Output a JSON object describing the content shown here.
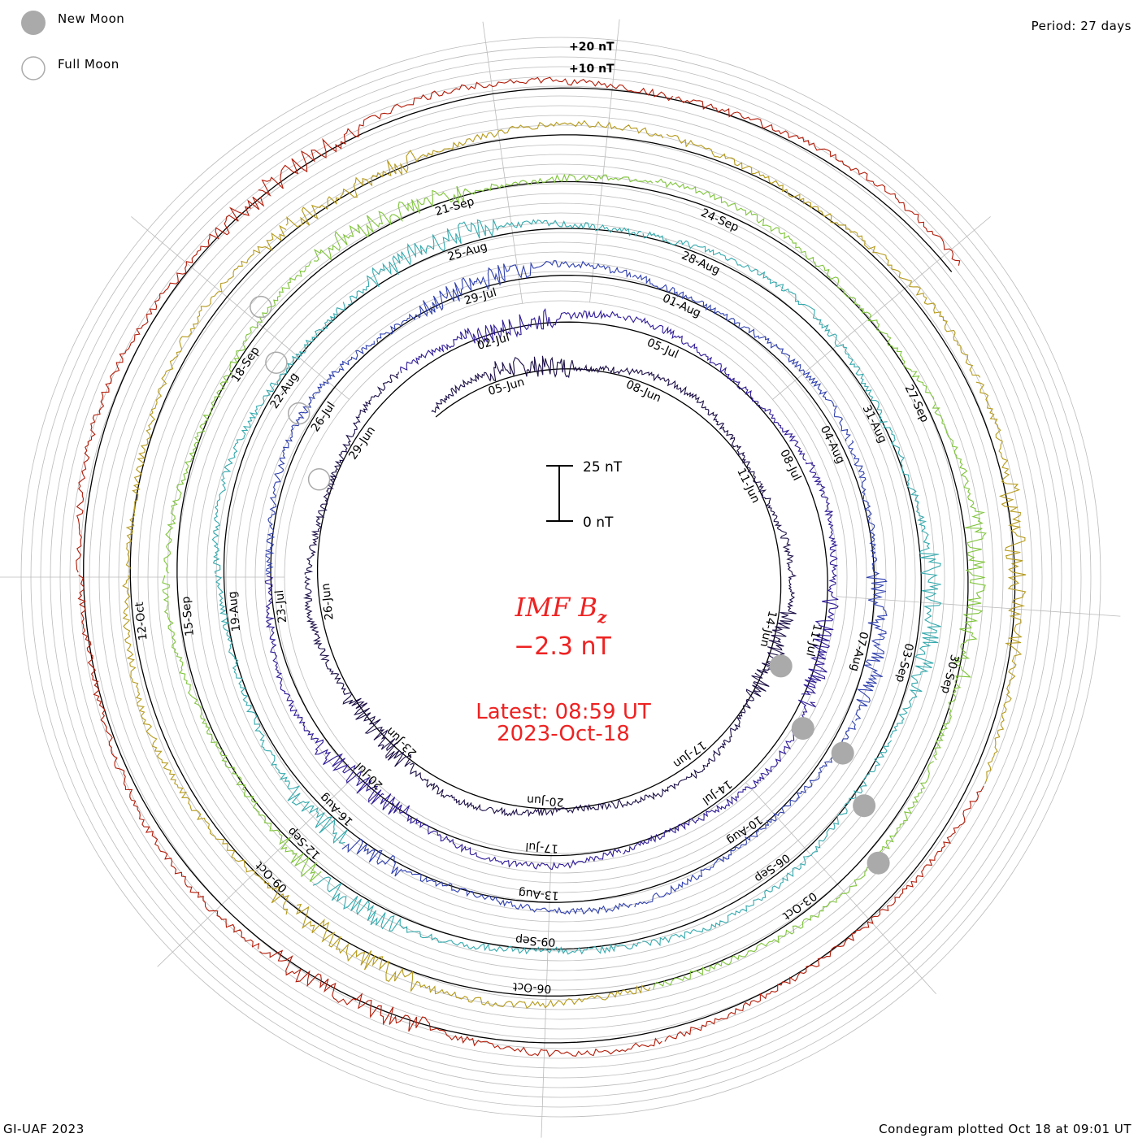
{
  "legend": {
    "new_moon_label": "New Moon",
    "full_moon_label": "Full Moon"
  },
  "header": {
    "period": "Period: 27 days"
  },
  "footer": {
    "credit": "GI-UAF 2023",
    "plotted": "Condegram plotted Oct 18 at 09:01 UT"
  },
  "center": {
    "quantity": "IMF B",
    "subscript": "z",
    "value": "−2.3 nT",
    "latest": "Latest: 08:59 UT",
    "date": "2023-Oct-18"
  },
  "scale_bar": {
    "top_label": "25 nT",
    "bottom_label": "0 nT"
  },
  "colors": {
    "accent": "#ee2222",
    "grid": "#bbbbbb",
    "moon": "#aaaaaa",
    "cycles": [
      "#1b0e45",
      "#2f1a96",
      "#2e3fae",
      "#35a9ad",
      "#7fc43b",
      "#b59a1c",
      "#b21b08"
    ]
  },
  "chart_data": {
    "type": "condegram (spiral time series)",
    "title": "IMF Bz",
    "period_days": 27,
    "latest_value_nT": -2.3,
    "latest_time": "08:59 UT",
    "latest_date": "2023-Oct-18",
    "ring_scale_labels": [
      "+20 nT",
      "+10 nT"
    ],
    "scale_bar_nT": [
      0,
      25
    ],
    "cycles": [
      {
        "index": 1,
        "dates": [
          "05-Jun",
          "08-Jun",
          "11-Jun",
          "14-Jun",
          "17-Jun",
          "20-Jun",
          "23-Jun",
          "26-Jun",
          "29-Jun",
          "02-Jul"
        ]
      },
      {
        "index": 2,
        "dates": [
          "02-Jul",
          "05-Jul",
          "08-Jul",
          "11-Jul",
          "14-Jul",
          "17-Jul",
          "20-Jul",
          "23-Jul",
          "26-Jul",
          "29-Jul"
        ]
      },
      {
        "index": 3,
        "dates": [
          "29-Jul",
          "01-Aug",
          "04-Aug",
          "07-Aug",
          "10-Aug",
          "13-Aug",
          "16-Aug",
          "19-Aug",
          "22-Aug",
          "25-Aug"
        ]
      },
      {
        "index": 4,
        "dates": [
          "25-Aug",
          "28-Aug",
          "31-Aug",
          "03-Sep",
          "06-Sep",
          "09-Sep",
          "12-Sep",
          "15-Sep",
          "18-Sep",
          "21-Sep"
        ]
      },
      {
        "index": 5,
        "dates": [
          "21-Sep",
          "24-Sep",
          "27-Sep",
          "30-Sep",
          "03-Oct",
          "06-Oct",
          "09-Oct",
          "12-Oct"
        ]
      }
    ],
    "new_moons": [
      "2023-06-18",
      "2023-07-17",
      "2023-08-16",
      "2023-09-15",
      "2023-10-14"
    ],
    "full_moons": [
      "2023-07-03",
      "2023-08-01",
      "2023-08-31",
      "2023-09-29"
    ]
  }
}
